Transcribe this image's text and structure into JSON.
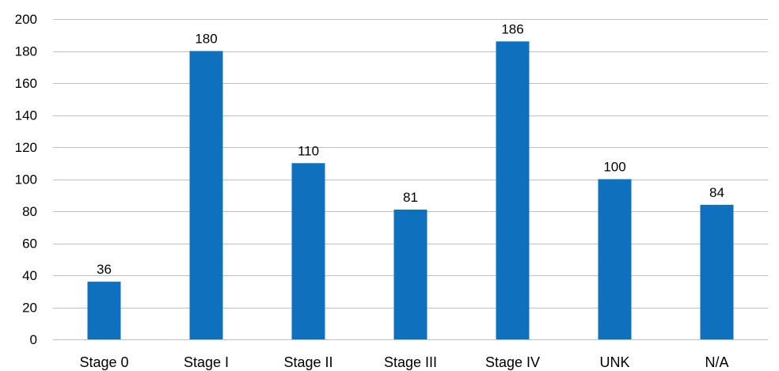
{
  "chart_data": {
    "type": "bar",
    "title": "",
    "xlabel": "",
    "ylabel": "",
    "categories": [
      "Stage 0",
      "Stage I",
      "Stage II",
      "Stage III",
      "Stage IV",
      "UNK",
      "N/A"
    ],
    "values": [
      36,
      180,
      110,
      81,
      186,
      100,
      84
    ],
    "ylim": [
      0,
      200
    ],
    "yticks": [
      0,
      20,
      40,
      60,
      80,
      100,
      120,
      140,
      160,
      180,
      200
    ],
    "grid": true,
    "legend": "none",
    "data_labels": true,
    "bar_color": "#0F70BD",
    "gridline_color": "#BFBFBF"
  }
}
